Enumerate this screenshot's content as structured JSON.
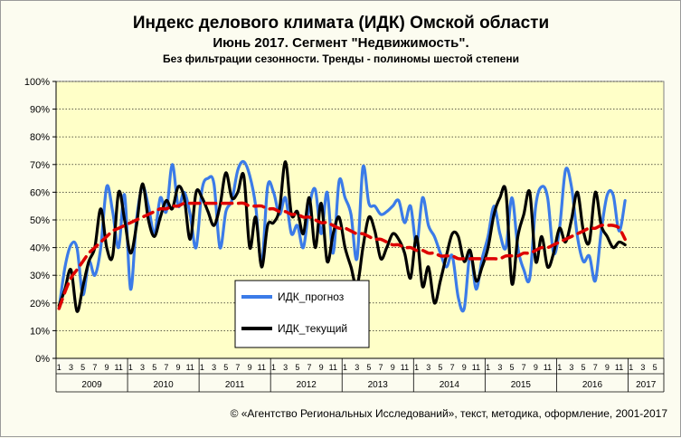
{
  "title": "Индекс делового климата (ИДК) Омской области",
  "subtitle": "Июнь 2017.  Сегмент \"Недвижимость\".",
  "note": "Без фильтрации  сезонности. Тренды  - полиномы  шестой степени",
  "copyright": "© «Агентство Региональных Исследований», текст, методика, оформление, 2001-2017",
  "colors": {
    "plot_bg": "#ffffc8",
    "grid": "#000000",
    "forecast": "#3b7be8",
    "current": "#000000",
    "trend": "#dd0000"
  },
  "chart_data": {
    "type": "line",
    "ylim": [
      0,
      100
    ],
    "yticks": [
      0,
      10,
      20,
      30,
      40,
      50,
      60,
      70,
      80,
      90,
      100
    ],
    "ytick_labels": [
      "0%",
      "10%",
      "20%",
      "30%",
      "40%",
      "50%",
      "60%",
      "70%",
      "80%",
      "90%",
      "100%"
    ],
    "month_tick_labels": [
      "1",
      "3",
      "5",
      "7",
      "9",
      "11"
    ],
    "years": [
      "2009",
      "2010",
      "2011",
      "2012",
      "2013",
      "2014",
      "2015",
      "2016",
      "2017"
    ],
    "months_per_year": [
      12,
      12,
      12,
      12,
      12,
      12,
      12,
      12,
      6
    ],
    "legend": {
      "placement": "center-left",
      "entries": [
        "ИДК_прогноз",
        "ИДК_текущий"
      ]
    },
    "series": [
      {
        "name": "ИДК_прогноз",
        "values": [
          18,
          33,
          41,
          40,
          23,
          35,
          30,
          40,
          62,
          53,
          40,
          59,
          25,
          50,
          62,
          55,
          45,
          58,
          53,
          70,
          55,
          60,
          52,
          40,
          61,
          65,
          63,
          40,
          53,
          57,
          68,
          71,
          66,
          55,
          34,
          62,
          60,
          52,
          58,
          45,
          48,
          40,
          55,
          61,
          45,
          60,
          38,
          64,
          58,
          52,
          36,
          69,
          56,
          55,
          52,
          53,
          55,
          57,
          49,
          55,
          41,
          58,
          48,
          44,
          38,
          33,
          37,
          22,
          18,
          38,
          25,
          36,
          44,
          55,
          45,
          40,
          58,
          40,
          32,
          29,
          55,
          62,
          58,
          38,
          47,
          68,
          62,
          44,
          35,
          37,
          28,
          46,
          59,
          59,
          46,
          57
        ]
      },
      {
        "name": "ИДК_текущий",
        "values": [
          19,
          25,
          32,
          17,
          26,
          35,
          40,
          54,
          40,
          37,
          60,
          50,
          38,
          48,
          63,
          50,
          44,
          51,
          57,
          54,
          62,
          58,
          43,
          60,
          58,
          53,
          48,
          55,
          67,
          58,
          60,
          66,
          40,
          51,
          33,
          48,
          49,
          54,
          71,
          52,
          53,
          45,
          58,
          40,
          56,
          35,
          45,
          51,
          40,
          33,
          26,
          40,
          51,
          46,
          36,
          40,
          45,
          43,
          38,
          29,
          44,
          26,
          33,
          20,
          28,
          37,
          45,
          44,
          35,
          39,
          28,
          33,
          40,
          52,
          58,
          60,
          27,
          44,
          52,
          60,
          35,
          44,
          33,
          38,
          47,
          42,
          50,
          60,
          46,
          42,
          60,
          48,
          44,
          40,
          42,
          41
        ]
      },
      {
        "name": "",
        "values": [
          18,
          24,
          29,
          32,
          35,
          38,
          40,
          42,
          44,
          46,
          47,
          48,
          49,
          50,
          51,
          52,
          53,
          54,
          54,
          55,
          55,
          56,
          56,
          56,
          56,
          56,
          56,
          56,
          56,
          56,
          56,
          56,
          55,
          55,
          55,
          54,
          54,
          53,
          53,
          52,
          52,
          51,
          51,
          50,
          49,
          49,
          48,
          47,
          47,
          46,
          45,
          45,
          44,
          43,
          43,
          42,
          41,
          41,
          40,
          40,
          39,
          39,
          38,
          38,
          37,
          37,
          37,
          36,
          36,
          36,
          36,
          36,
          36,
          36,
          36,
          37,
          37,
          37,
          38,
          38,
          39,
          40,
          40,
          41,
          42,
          43,
          44,
          45,
          46,
          47,
          47,
          48,
          48,
          48,
          47,
          43
        ]
      }
    ]
  }
}
